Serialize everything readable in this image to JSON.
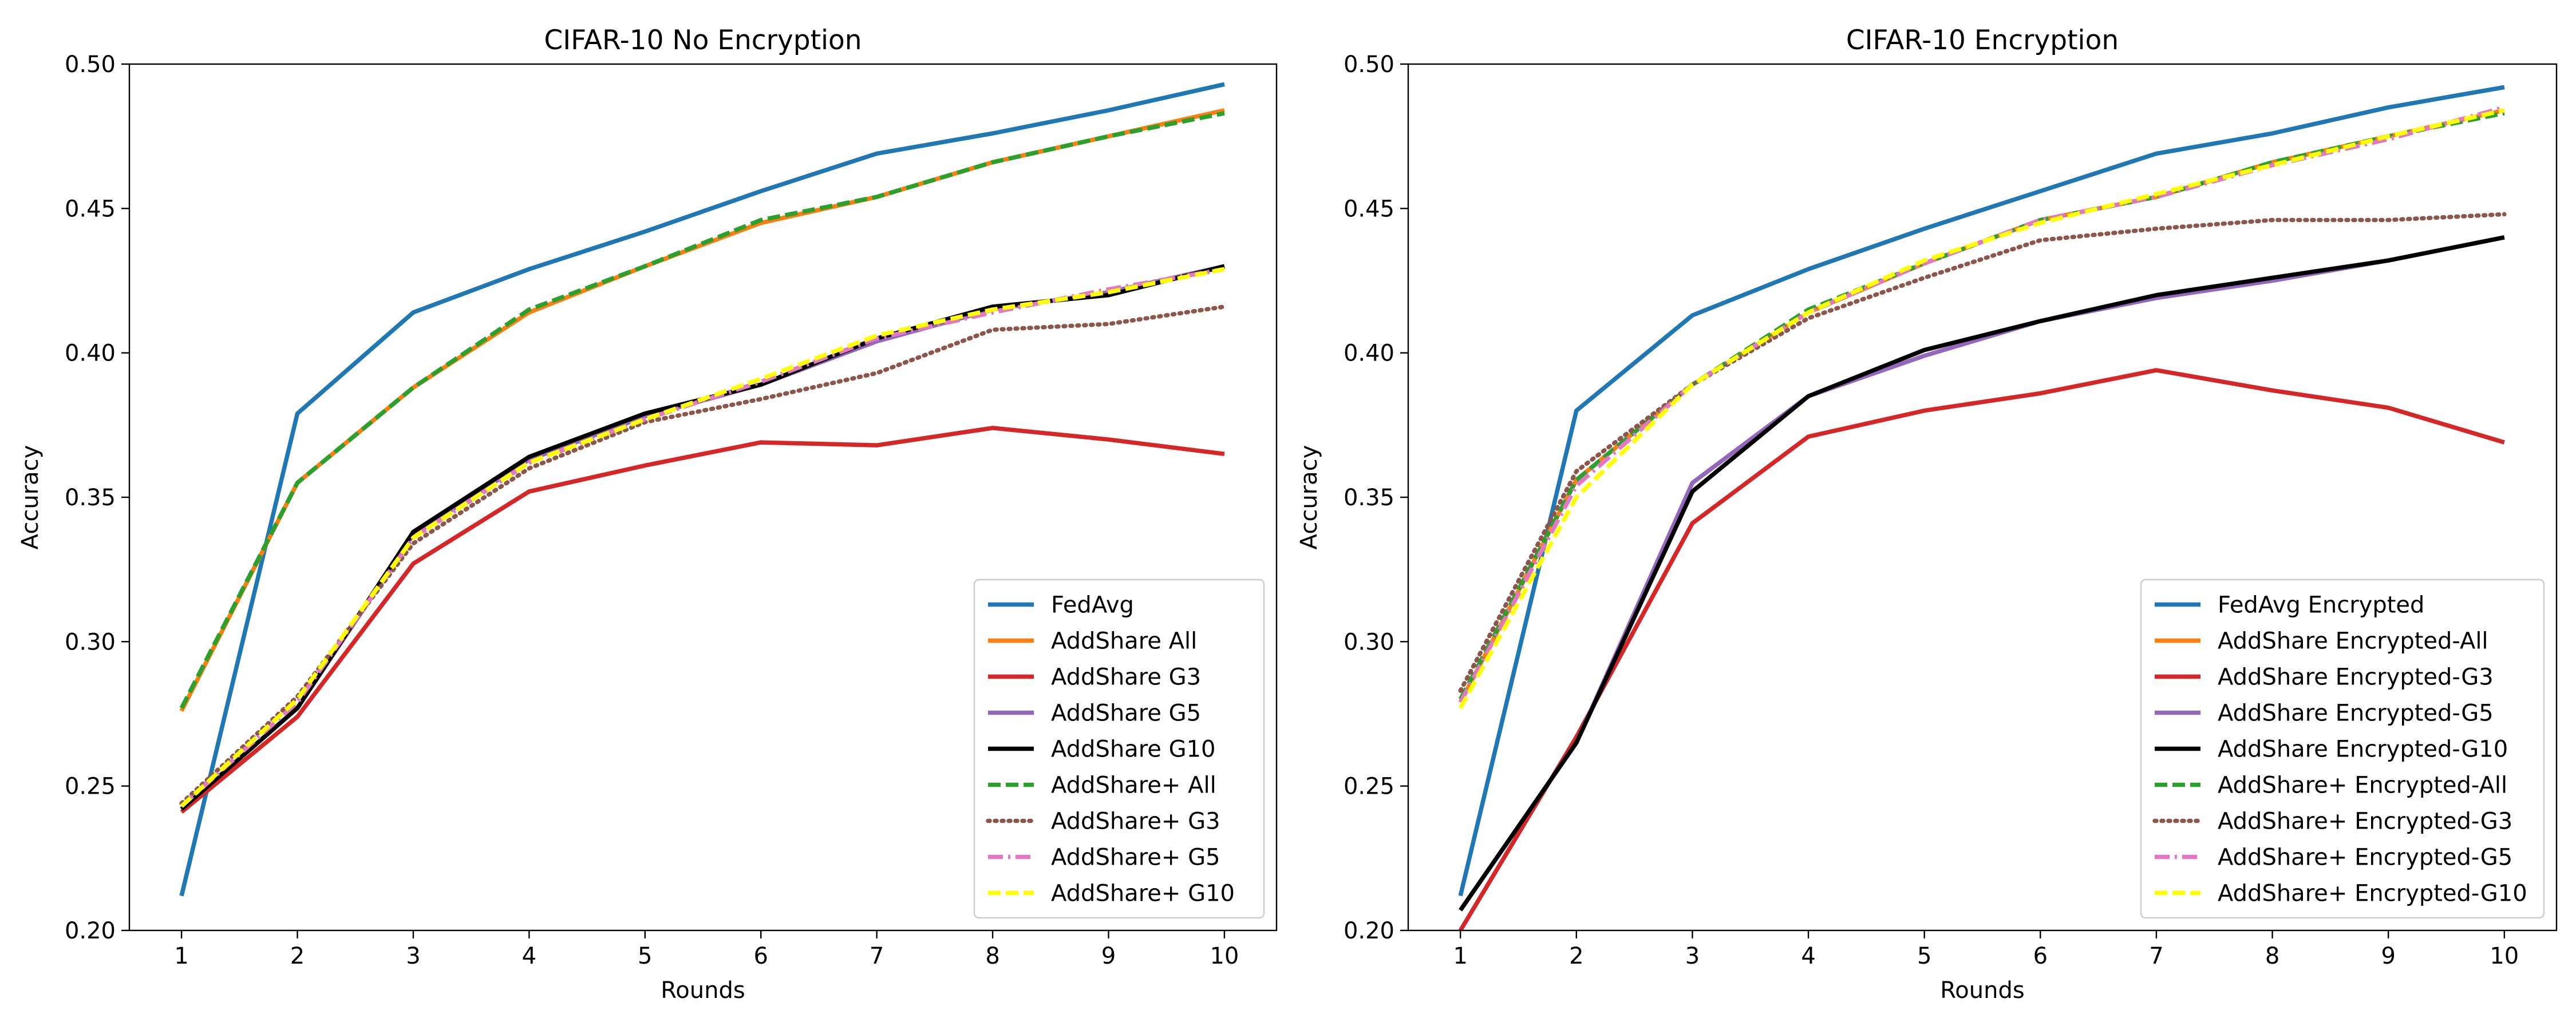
{
  "figure": {
    "background": "#ffffff"
  },
  "chart_data": [
    {
      "type": "line",
      "title": "CIFAR-10 No Encryption",
      "xlabel": "Rounds",
      "ylabel": "Accuracy",
      "x": [
        1,
        2,
        3,
        4,
        5,
        6,
        7,
        8,
        9,
        10
      ],
      "xlim": [
        0.55,
        10.45
      ],
      "ylim": [
        0.2,
        0.5
      ],
      "xticks": [
        "1",
        "2",
        "3",
        "4",
        "5",
        "6",
        "7",
        "8",
        "9",
        "10"
      ],
      "yticks": [
        "0.20",
        "0.25",
        "0.30",
        "0.35",
        "0.40",
        "0.45",
        "0.50"
      ],
      "grid": false,
      "legend_position": "lower-right",
      "series": [
        {
          "name": "FedAvg",
          "color": "#1f77b4",
          "style": "solid",
          "values": [
            0.212,
            0.379,
            0.414,
            0.429,
            0.442,
            0.456,
            0.469,
            0.476,
            0.484,
            0.493
          ]
        },
        {
          "name": "AddShare All",
          "color": "#ff7f0e",
          "style": "solid",
          "values": [
            0.276,
            0.355,
            0.388,
            0.414,
            0.43,
            0.445,
            0.454,
            0.466,
            0.475,
            0.484
          ]
        },
        {
          "name": "AddShare G3",
          "color": "#d62728",
          "style": "solid",
          "values": [
            0.241,
            0.274,
            0.327,
            0.352,
            0.361,
            0.369,
            0.368,
            0.374,
            0.37,
            0.365
          ]
        },
        {
          "name": "AddShare G5",
          "color": "#9467bd",
          "style": "solid",
          "values": [
            0.242,
            0.277,
            0.337,
            0.363,
            0.378,
            0.389,
            0.404,
            0.415,
            0.421,
            0.43
          ]
        },
        {
          "name": "AddShare G10",
          "color": "#000000",
          "style": "solid",
          "values": [
            0.242,
            0.277,
            0.338,
            0.364,
            0.379,
            0.389,
            0.405,
            0.416,
            0.42,
            0.43
          ]
        },
        {
          "name": "AddShare+ All",
          "color": "#2ca02c",
          "style": "dashed",
          "values": [
            0.277,
            0.355,
            0.388,
            0.415,
            0.43,
            0.446,
            0.454,
            0.466,
            0.475,
            0.483
          ]
        },
        {
          "name": "AddShare+ G3",
          "color": "#8c564b",
          "style": "dotted",
          "values": [
            0.244,
            0.281,
            0.334,
            0.36,
            0.376,
            0.384,
            0.393,
            0.408,
            0.41,
            0.416
          ]
        },
        {
          "name": "AddShare+ G5",
          "color": "#e377c2",
          "style": "dashdot",
          "values": [
            0.243,
            0.279,
            0.336,
            0.362,
            0.377,
            0.39,
            0.405,
            0.414,
            0.422,
            0.429
          ]
        },
        {
          "name": "AddShare+ G10",
          "color": "#ffff00",
          "style": "dashed",
          "values": [
            0.243,
            0.28,
            0.336,
            0.362,
            0.377,
            0.391,
            0.406,
            0.415,
            0.421,
            0.429
          ]
        }
      ]
    },
    {
      "type": "line",
      "title": "CIFAR-10 Encryption",
      "xlabel": "Rounds",
      "ylabel": "Accuracy",
      "x": [
        1,
        2,
        3,
        4,
        5,
        6,
        7,
        8,
        9,
        10
      ],
      "xlim": [
        0.55,
        10.45
      ],
      "ylim": [
        0.2,
        0.5
      ],
      "xticks": [
        "1",
        "2",
        "3",
        "4",
        "5",
        "6",
        "7",
        "8",
        "9",
        "10"
      ],
      "yticks": [
        "0.20",
        "0.25",
        "0.30",
        "0.35",
        "0.40",
        "0.45",
        "0.50"
      ],
      "grid": false,
      "legend_position": "lower-right",
      "series": [
        {
          "name": "FedAvg Encrypted",
          "color": "#1f77b4",
          "style": "solid",
          "values": [
            0.212,
            0.38,
            0.413,
            0.429,
            0.443,
            0.456,
            0.469,
            0.476,
            0.485,
            0.492
          ]
        },
        {
          "name": "AddShare Encrypted-All",
          "color": "#ff7f0e",
          "style": "solid",
          "values": [
            0.279,
            0.356,
            0.389,
            0.414,
            0.431,
            0.446,
            0.454,
            0.466,
            0.475,
            0.484
          ]
        },
        {
          "name": "AddShare Encrypted-G3",
          "color": "#d62728",
          "style": "solid",
          "values": [
            0.2,
            0.267,
            0.341,
            0.371,
            0.38,
            0.386,
            0.394,
            0.387,
            0.381,
            0.369
          ]
        },
        {
          "name": "AddShare Encrypted-G5",
          "color": "#9467bd",
          "style": "solid",
          "values": [
            0.207,
            0.265,
            0.355,
            0.385,
            0.399,
            0.411,
            0.419,
            0.425,
            0.432,
            0.44
          ]
        },
        {
          "name": "AddShare Encrypted-G10",
          "color": "#000000",
          "style": "solid",
          "values": [
            0.207,
            0.265,
            0.352,
            0.385,
            0.401,
            0.411,
            0.42,
            0.426,
            0.432,
            0.44
          ]
        },
        {
          "name": "AddShare+ Encrypted-All",
          "color": "#2ca02c",
          "style": "dashed",
          "values": [
            0.28,
            0.356,
            0.389,
            0.415,
            0.431,
            0.446,
            0.454,
            0.466,
            0.475,
            0.483
          ]
        },
        {
          "name": "AddShare+ Encrypted-G3",
          "color": "#8c564b",
          "style": "dotted",
          "values": [
            0.283,
            0.359,
            0.389,
            0.412,
            0.426,
            0.439,
            0.443,
            0.446,
            0.446,
            0.448
          ]
        },
        {
          "name": "AddShare+ Encrypted-G5",
          "color": "#e377c2",
          "style": "dashdot",
          "values": [
            0.279,
            0.354,
            0.389,
            0.414,
            0.431,
            0.446,
            0.454,
            0.465,
            0.474,
            0.485
          ]
        },
        {
          "name": "AddShare+ Encrypted-G10",
          "color": "#ffff00",
          "style": "dashed",
          "values": [
            0.277,
            0.35,
            0.389,
            0.414,
            0.432,
            0.445,
            0.455,
            0.465,
            0.475,
            0.484
          ]
        }
      ]
    }
  ]
}
